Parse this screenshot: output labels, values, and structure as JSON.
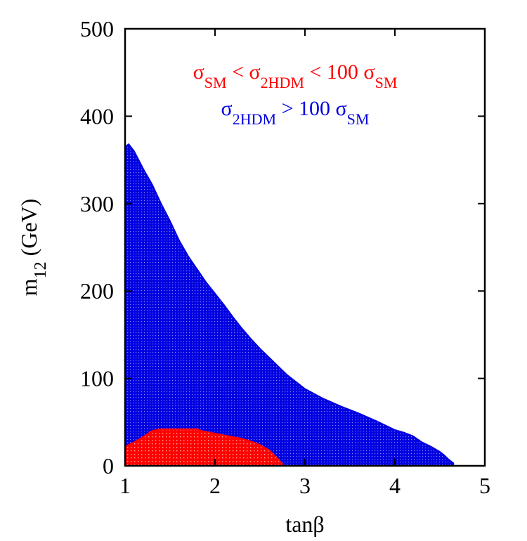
{
  "chart_data": {
    "type": "area",
    "xlabel": "tanβ",
    "ylabel": {
      "main": "m",
      "sub": "12",
      "unit": " (GeV)"
    },
    "xlim": [
      1,
      5
    ],
    "ylim": [
      0,
      500
    ],
    "xticks": [
      1,
      2,
      3,
      4,
      5
    ],
    "yticks": [
      0,
      100,
      200,
      300,
      400,
      500
    ],
    "xtick_labels": [
      "1",
      "2",
      "3",
      "4",
      "5"
    ],
    "ytick_labels": [
      "0",
      "100",
      "200",
      "300",
      "400",
      "500"
    ],
    "grid": false,
    "legend_position": "top-center",
    "series": [
      {
        "legend": [
          {
            "text": "σ",
            "sub": true,
            "subtext": "2HDM"
          },
          {
            "text": " > 100 σ",
            "sub": true,
            "subtext": "SM"
          }
        ],
        "color": "#0000e0",
        "boundary": [
          [
            1.0,
            365
          ],
          [
            1.04,
            368
          ],
          [
            1.1,
            360
          ],
          [
            1.2,
            340
          ],
          [
            1.3,
            322
          ],
          [
            1.4,
            300
          ],
          [
            1.5,
            280
          ],
          [
            1.6,
            258
          ],
          [
            1.7,
            240
          ],
          [
            1.8,
            225
          ],
          [
            1.9,
            210
          ],
          [
            2.0,
            197
          ],
          [
            2.1,
            184
          ],
          [
            2.2,
            170
          ],
          [
            2.3,
            157
          ],
          [
            2.4,
            145
          ],
          [
            2.5,
            134
          ],
          [
            2.6,
            124
          ],
          [
            2.7,
            114
          ],
          [
            2.8,
            104
          ],
          [
            2.9,
            96
          ],
          [
            3.0,
            88
          ],
          [
            3.2,
            77
          ],
          [
            3.4,
            68
          ],
          [
            3.6,
            60
          ],
          [
            3.8,
            51
          ],
          [
            4.0,
            41
          ],
          [
            4.1,
            38
          ],
          [
            4.2,
            34
          ],
          [
            4.3,
            27
          ],
          [
            4.4,
            22
          ],
          [
            4.5,
            16
          ],
          [
            4.55,
            12
          ],
          [
            4.6,
            7
          ],
          [
            4.65,
            3
          ]
        ]
      },
      {
        "legend": [
          {
            "text": "σ",
            "sub": true,
            "subtext": "SM"
          },
          {
            "text": " < σ",
            "sub": true,
            "subtext": "2HDM"
          },
          {
            "text": " < 100 σ",
            "sub": true,
            "subtext": "SM"
          }
        ],
        "color": "#ff0000",
        "boundary": [
          [
            1.0,
            22
          ],
          [
            1.1,
            27
          ],
          [
            1.2,
            33
          ],
          [
            1.3,
            40
          ],
          [
            1.4,
            42
          ],
          [
            1.5,
            42
          ],
          [
            1.6,
            42
          ],
          [
            1.7,
            42
          ],
          [
            1.8,
            42
          ],
          [
            1.85,
            40
          ],
          [
            2.0,
            37
          ],
          [
            2.1,
            35
          ],
          [
            2.2,
            33
          ],
          [
            2.3,
            31
          ],
          [
            2.4,
            28
          ],
          [
            2.5,
            24
          ],
          [
            2.6,
            18
          ],
          [
            2.7,
            8
          ],
          [
            2.75,
            2
          ]
        ]
      }
    ]
  }
}
